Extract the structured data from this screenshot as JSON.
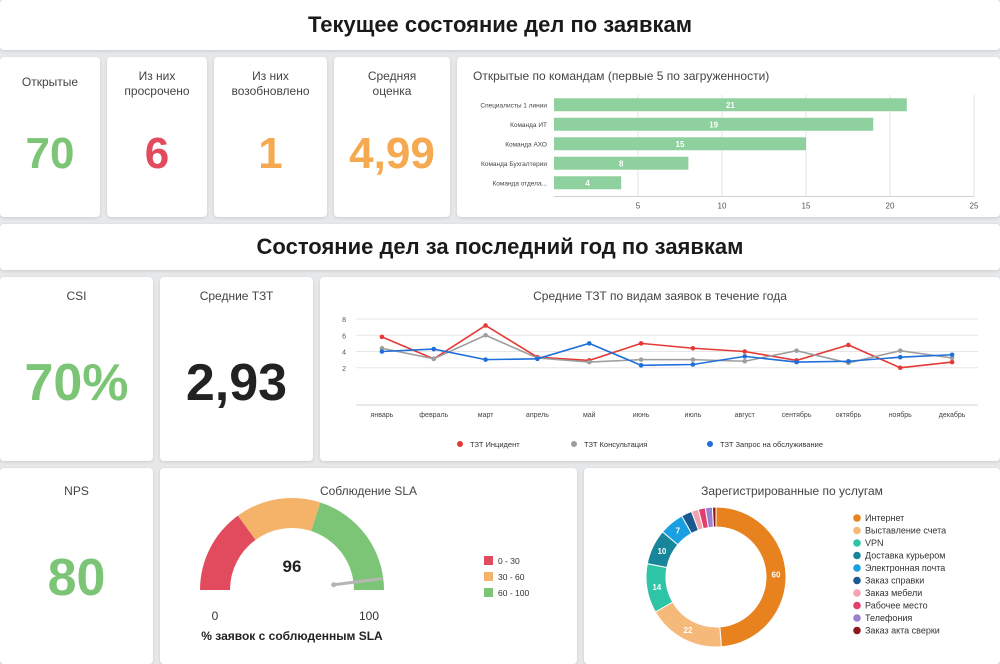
{
  "header1": {
    "title": "Текущее состояние дел по заявкам"
  },
  "header2": {
    "title": "Состояние дел за последний год по заявкам"
  },
  "kpis_current": [
    {
      "label": "Открытые",
      "value": "70",
      "color": "#7cc576"
    },
    {
      "label": "Из них\nпросрочено",
      "value": "6",
      "color": "#e24a5e"
    },
    {
      "label": "Из них\nвозобновлено",
      "value": "1",
      "color": "#f5a950"
    },
    {
      "label": "Средняя\nоценка",
      "value": "4,99",
      "color": "#f5a950"
    }
  ],
  "kpis_year": {
    "csi": {
      "label": "CSI",
      "value": "70%",
      "color": "#7cc576"
    },
    "tzt": {
      "label": "Средние ТЗТ",
      "value": "2,93",
      "color": "#222222"
    },
    "nps": {
      "label": "NPS",
      "value": "80",
      "color": "#7cc576"
    }
  },
  "colors": {
    "bar": "#8fd19e",
    "red": "#e53935",
    "gray": "#9e9e9e",
    "blue": "#1e6fd9"
  },
  "chart_data": [
    {
      "type": "bar",
      "orientation": "horizontal",
      "title": "Открытые по командам (первые 5 по загруженности)",
      "categories": [
        "Специалисты 1 линии",
        "Команда ИТ",
        "Команда АХО",
        "Команда Бухгалтерии",
        "Команда отдела..."
      ],
      "values": [
        21,
        19,
        15,
        8,
        4
      ],
      "xlim": [
        0,
        25
      ],
      "xticks": [
        5,
        10,
        15,
        20,
        25
      ],
      "grid": true
    },
    {
      "type": "line",
      "title": "Средние ТЗТ по видам заявок в течение года",
      "x": [
        "январь",
        "февраль",
        "март",
        "апрель",
        "май",
        "июнь",
        "июль",
        "август",
        "сентябрь",
        "октябрь",
        "ноябрь",
        "декабрь"
      ],
      "ylim": [
        0,
        8
      ],
      "yticks": [
        2,
        4,
        6,
        8
      ],
      "grid": true,
      "legend_position": "bottom",
      "series": [
        {
          "name": "ТЗТ Инцидент",
          "color": "#e53935",
          "values": [
            5.8,
            3.1,
            7.2,
            3.3,
            2.9,
            5.0,
            4.4,
            4.0,
            2.9,
            4.8,
            2.0,
            2.7
          ]
        },
        {
          "name": "ТЗТ Консультация",
          "color": "#9e9e9e",
          "values": [
            4.4,
            3.1,
            6.0,
            3.2,
            2.7,
            3.0,
            3.0,
            2.8,
            4.1,
            2.6,
            4.1,
            3.2
          ]
        },
        {
          "name": "ТЗТ Запрос на обслуживание",
          "color": "#1e6fd9",
          "values": [
            4.0,
            4.3,
            3.0,
            3.1,
            5.0,
            2.3,
            2.4,
            3.4,
            2.7,
            2.8,
            3.3,
            3.6
          ]
        }
      ]
    },
    {
      "type": "gauge",
      "title": "Соблюдение SLA",
      "value": 96,
      "min": 0,
      "max": 100,
      "min_label": "0",
      "max_label": "100",
      "label": "% заявок с соблюденным SLA",
      "bands": [
        {
          "name": "0 - 30",
          "from": 0,
          "to": 30,
          "color": "#e24a5e"
        },
        {
          "name": "30 - 60",
          "from": 30,
          "to": 60,
          "color": "#f5b36a"
        },
        {
          "name": "60 - 100",
          "from": 60,
          "to": 100,
          "color": "#7cc576"
        }
      ]
    },
    {
      "type": "pie",
      "donut": true,
      "title": "Зарегистрированные по услугам",
      "legend_position": "right",
      "slices": [
        {
          "name": "Интернет",
          "value": 60,
          "color": "#e8821e",
          "label": "60"
        },
        {
          "name": "Выставление счета",
          "value": 22,
          "color": "#f5b97a",
          "label": "22"
        },
        {
          "name": "VPN",
          "value": 14,
          "color": "#2ec4a6",
          "label": "14"
        },
        {
          "name": "Доставка курьером",
          "value": 10,
          "color": "#17869b",
          "label": "10"
        },
        {
          "name": "Электронная почта",
          "value": 7,
          "color": "#1aa0e0",
          "label": "7"
        },
        {
          "name": "Заказ справки",
          "value": 3,
          "color": "#1b5a8f",
          "label": ""
        },
        {
          "name": "Заказ мебели",
          "value": 2,
          "color": "#f2a3b0",
          "label": ""
        },
        {
          "name": "Рабочее место",
          "value": 2,
          "color": "#e23f6a",
          "label": ""
        },
        {
          "name": "Телефония",
          "value": 2,
          "color": "#9b7fd1",
          "label": ""
        },
        {
          "name": "Заказ акта сверки",
          "value": 1,
          "color": "#8b1a1a",
          "label": ""
        }
      ]
    }
  ]
}
